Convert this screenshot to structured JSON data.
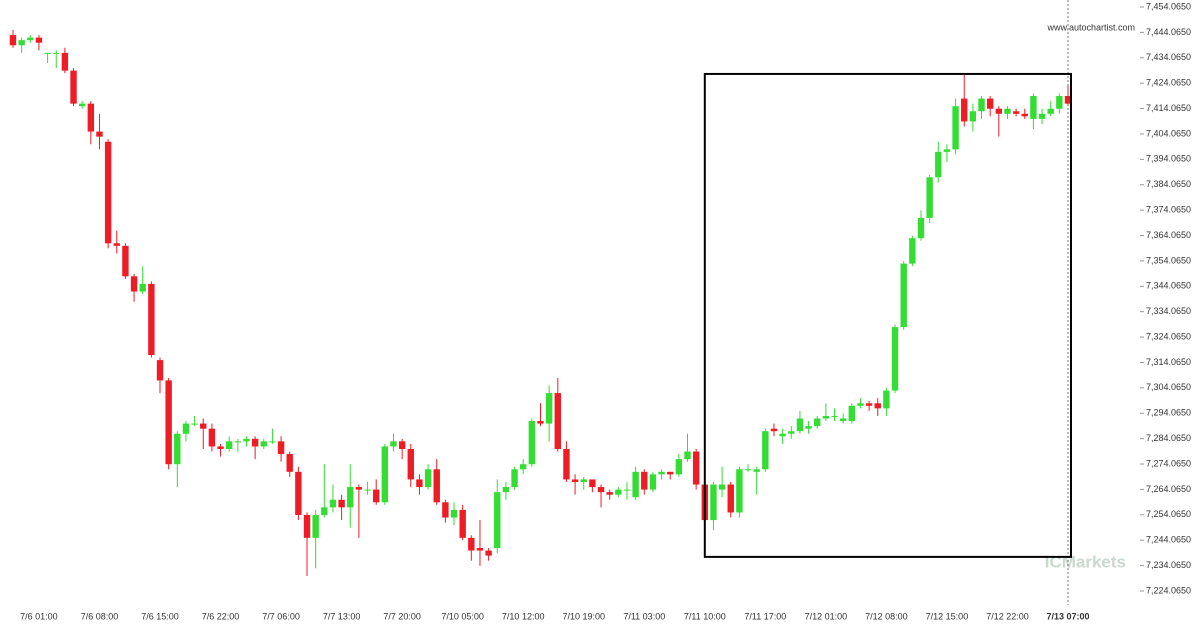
{
  "chart_data": {
    "type": "candlestick",
    "watermark": "www.autochartist.com",
    "logo": "ICMarkets",
    "up_color": "#33dd33",
    "down_color": "#ee1c25",
    "categories": [
      null,
      null,
      null,
      "7/6 01:00",
      null,
      null,
      null,
      null,
      null,
      null,
      "7/6 08:00",
      null,
      null,
      null,
      null,
      null,
      null,
      "7/6 15:00",
      null,
      null,
      null,
      null,
      null,
      null,
      "7/6 22:00",
      null,
      null,
      null,
      null,
      null,
      null,
      "7/7 06:00",
      null,
      null,
      null,
      null,
      null,
      null,
      "7/7 13:00",
      null,
      null,
      null,
      null,
      null,
      null,
      "7/7 20:00",
      null,
      null,
      null,
      null,
      null,
      null,
      "7/10 05:00",
      null,
      null,
      null,
      null,
      null,
      null,
      "7/10 12:00",
      null,
      null,
      null,
      null,
      null,
      null,
      "7/10 19:00",
      null,
      null,
      null,
      null,
      null,
      null,
      "7/11 03:00",
      null,
      null,
      null,
      null,
      null,
      null,
      "7/11 10:00",
      null,
      null,
      null,
      null,
      null,
      null,
      "7/11 17:00",
      null,
      null,
      null,
      null,
      null,
      null,
      "7/12 01:00",
      null,
      null,
      null,
      null,
      null,
      null,
      "7/12 08:00",
      null,
      null,
      null,
      null,
      null,
      null,
      "7/12 15:00",
      null,
      null,
      null,
      null,
      null,
      null,
      "7/12 22:00",
      null,
      null,
      null,
      null,
      null,
      null,
      "7/13 07:00"
    ],
    "open": [
      7443,
      7439,
      7441,
      7442,
      7436,
      7436,
      7436,
      7429,
      7415,
      7416,
      7405,
      7401,
      7361,
      7360,
      7348,
      7342,
      7345,
      7315,
      7307,
      7274,
      7286,
      7290,
      7290,
      7288,
      7281,
      7280,
      7283,
      7283,
      7284,
      7281,
      7283,
      7283,
      7278,
      7271,
      7254,
      7245,
      7254,
      7257,
      7260,
      7257,
      7265,
      7264,
      7264,
      7259,
      7281,
      7283,
      7280,
      7268,
      7265,
      7272,
      7259,
      7253,
      7256,
      7245,
      7241,
      7240,
      7241,
      7263,
      7265,
      7272,
      7274,
      7291,
      7290,
      7302,
      7280,
      7268,
      7267,
      7268,
      7265,
      7263,
      7262,
      7264,
      7261,
      7271,
      7264,
      7270,
      7271,
      7270,
      7276,
      7279,
      7266,
      7252,
      7264,
      7266,
      7255,
      7272,
      7271,
      7272,
      7288,
      7285,
      7286,
      7287,
      7288,
      7289,
      7292,
      7293,
      7291,
      7291,
      7297,
      7298,
      7298,
      7296,
      7303,
      7328,
      7353,
      7363,
      7371,
      7387,
      7397,
      7398,
      7418,
      7409,
      7413,
      7418,
      7414,
      7412,
      7413,
      7412,
      7410,
      7410,
      7412,
      7414,
      7419
    ],
    "high": [
      7445,
      7442,
      7443,
      7443,
      7436,
      7437,
      7438,
      7430,
      7417,
      7417,
      7412,
      7402,
      7366,
      7361,
      7349,
      7352,
      7346,
      7316,
      7308,
      7287,
      7291,
      7293,
      7292,
      7290,
      7282,
      7285,
      7284,
      7285,
      7285,
      7284,
      7288,
      7285,
      7279,
      7273,
      7255,
      7256,
      7274,
      7266,
      7262,
      7274,
      7266,
      7267,
      7268,
      7282,
      7286,
      7284,
      7282,
      7270,
      7274,
      7276,
      7260,
      7259,
      7258,
      7246,
      7252,
      7241,
      7268,
      7267,
      7273,
      7276,
      7292,
      7298,
      7305,
      7308,
      7283,
      7270,
      7269,
      7268,
      7266,
      7264,
      7265,
      7267,
      7273,
      7272,
      7271,
      7272,
      7271,
      7278,
      7286,
      7280,
      7268,
      7267,
      7273,
      7267,
      7273,
      7274,
      7273,
      7288,
      7290,
      7288,
      7289,
      7295,
      7291,
      7293,
      7298,
      7296,
      7294,
      7298,
      7300,
      7299,
      7300,
      7304,
      7329,
      7354,
      7364,
      7374,
      7388,
      7401,
      7400,
      7418,
      7428,
      7416,
      7419,
      7419,
      7415,
      7415,
      7414,
      7414,
      7420,
      7414,
      7417,
      7420,
      7423
    ],
    "low": [
      7438,
      7436,
      7440,
      7437,
      7432,
      7430,
      7428,
      7415,
      7414,
      7400,
      7398,
      7359,
      7357,
      7347,
      7338,
      7341,
      7316,
      7302,
      7272,
      7265,
      7283,
      7289,
      7280,
      7279,
      7277,
      7279,
      7279,
      7281,
      7276,
      7280,
      7282,
      7275,
      7269,
      7252,
      7230,
      7233,
      7253,
      7255,
      7252,
      7249,
      7245,
      7262,
      7258,
      7258,
      7279,
      7276,
      7265,
      7262,
      7264,
      7258,
      7251,
      7250,
      7244,
      7236,
      7234,
      7236,
      7239,
      7260,
      7264,
      7270,
      7273,
      7289,
      7283,
      7279,
      7267,
      7262,
      7264,
      7263,
      7257,
      7260,
      7261,
      7260,
      7260,
      7262,
      7263,
      7268,
      7268,
      7269,
      7275,
      7264,
      7243,
      7248,
      7261,
      7253,
      7253,
      7271,
      7262,
      7271,
      7285,
      7282,
      7284,
      7286,
      7286,
      7288,
      7291,
      7291,
      7290,
      7290,
      7296,
      7295,
      7293,
      7293,
      7302,
      7327,
      7352,
      7362,
      7369,
      7385,
      7393,
      7396,
      7407,
      7405,
      7410,
      7411,
      7403,
      7410,
      7411,
      7410,
      7406,
      7408,
      7411,
      7412,
      7415
    ],
    "close": [
      7439,
      7441,
      7442,
      7440,
      7436,
      7436,
      7429,
      7416,
      7416,
      7405,
      7403,
      7361,
      7360,
      7348,
      7342,
      7345,
      7317,
      7307,
      7274,
      7286,
      7290,
      7290,
      7288,
      7281,
      7280,
      7283,
      7283,
      7284,
      7281,
      7283,
      7283,
      7278,
      7271,
      7254,
      7245,
      7254,
      7257,
      7260,
      7257,
      7265,
      7264,
      7264,
      7259,
      7281,
      7283,
      7280,
      7268,
      7265,
      7272,
      7259,
      7253,
      7256,
      7245,
      7240,
      7240,
      7238,
      7263,
      7265,
      7272,
      7274,
      7291,
      7290,
      7302,
      7280,
      7268,
      7267,
      7268,
      7265,
      7263,
      7262,
      7264,
      7264,
      7271,
      7264,
      7270,
      7271,
      7270,
      7276,
      7279,
      7266,
      7252,
      7266,
      7266,
      7255,
      7272,
      7272,
      7272,
      7287,
      7287,
      7286,
      7287,
      7292,
      7289,
      7292,
      7293,
      7293,
      7292,
      7297,
      7298,
      7297,
      7296,
      7303,
      7328,
      7353,
      7363,
      7371,
      7387,
      7397,
      7398,
      7415,
      7409,
      7413,
      7418,
      7414,
      7412,
      7414,
      7412,
      7411,
      7419,
      7412,
      7414,
      7419,
      7416
    ],
    "ylim": [
      7218.55,
      7456.82
    ],
    "yticks": [
      {
        "value": 7454.065,
        "label": "7,454.0650"
      },
      {
        "value": 7444.065,
        "label": "7,444.0650"
      },
      {
        "value": 7434.065,
        "label": "7,434.0650"
      },
      {
        "value": 7424.065,
        "label": "7,424.0650"
      },
      {
        "value": 7414.065,
        "label": "7,414.0650"
      },
      {
        "value": 7404.065,
        "label": "7,404.0650"
      },
      {
        "value": 7394.065,
        "label": "7,394.0650"
      },
      {
        "value": 7384.065,
        "label": "7,384.0650"
      },
      {
        "value": 7374.065,
        "label": "7,374.0650"
      },
      {
        "value": 7364.065,
        "label": "7,364.0650"
      },
      {
        "value": 7354.065,
        "label": "7,354.0650"
      },
      {
        "value": 7344.065,
        "label": "7,344.0650"
      },
      {
        "value": 7334.065,
        "label": "7,334.0650"
      },
      {
        "value": 7324.065,
        "label": "7,324.0650"
      },
      {
        "value": 7314.065,
        "label": "7,314.0650"
      },
      {
        "value": 7304.065,
        "label": "7,304.0650"
      },
      {
        "value": 7294.065,
        "label": "7,294.0650"
      },
      {
        "value": 7284.065,
        "label": "7,284.0650"
      },
      {
        "value": 7274.065,
        "label": "7,274.0650"
      },
      {
        "value": 7264.065,
        "label": "7,264.0650"
      },
      {
        "value": 7254.065,
        "label": "7,254.0650"
      },
      {
        "value": 7244.065,
        "label": "7,244.0650"
      },
      {
        "value": 7234.065,
        "label": "7,234.0650"
      },
      {
        "value": 7224.065,
        "label": "7,224.0650"
      }
    ],
    "box": {
      "top": 7427.7,
      "bottom": 7237.5,
      "start": "7/11 10:00",
      "end": "7/13 07:00"
    }
  }
}
